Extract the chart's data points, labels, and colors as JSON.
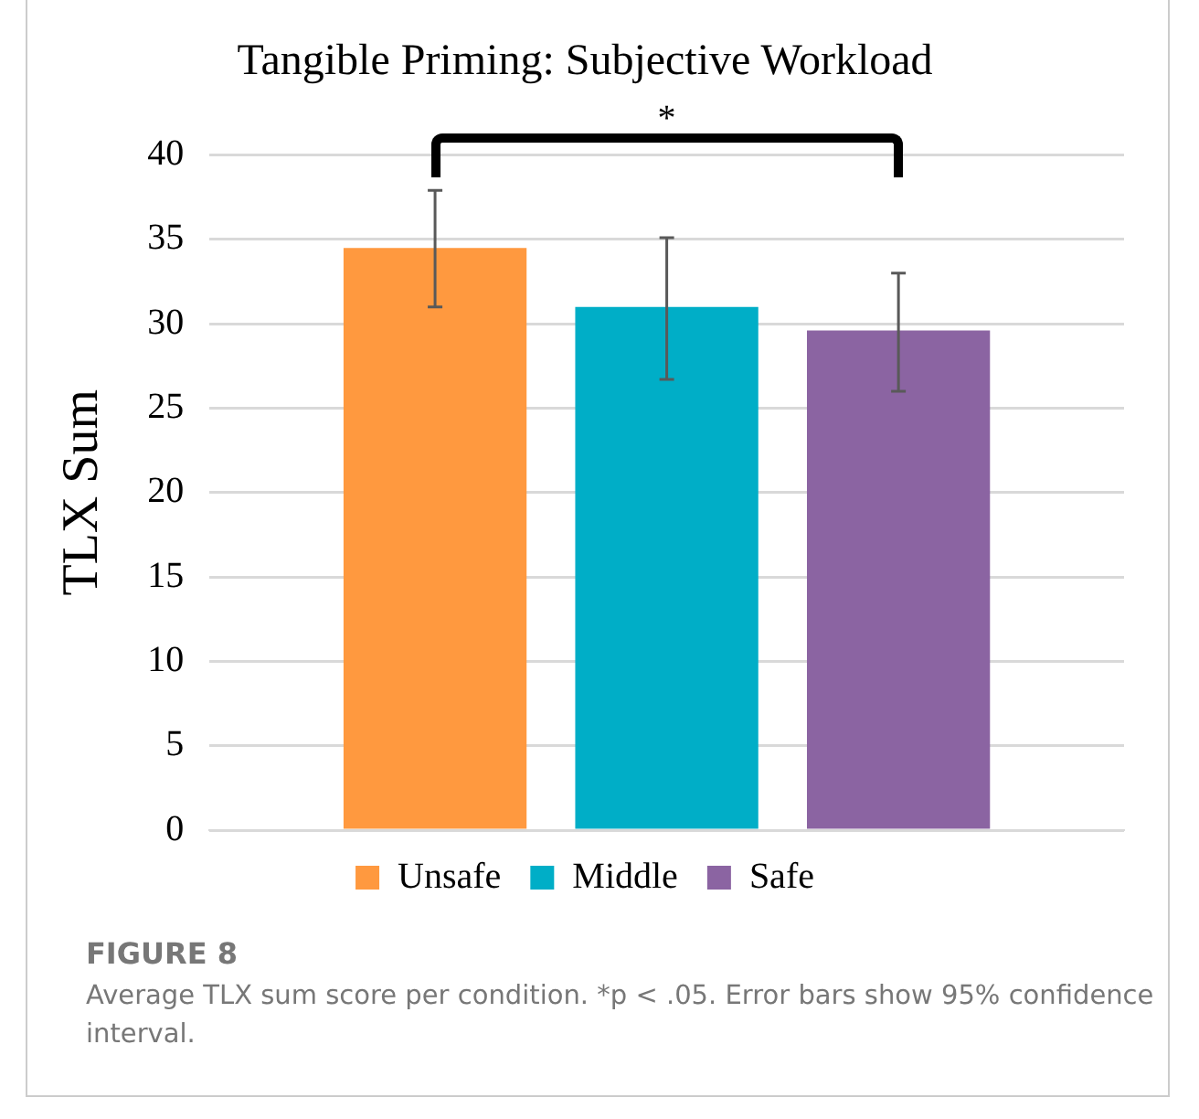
{
  "chart_data": {
    "type": "bar",
    "title": "Tangible Priming: Subjective Workload",
    "ylabel": "TLX Sum",
    "categories": [
      null
    ],
    "series": [
      {
        "name": "Unsafe",
        "color": "#ff993f",
        "values": [
          34.5
        ],
        "errors": [
          [
            31.0,
            37.9
          ]
        ]
      },
      {
        "name": "Middle",
        "color": "#00aec7",
        "values": [
          31.0
        ],
        "errors": [
          [
            26.7,
            35.1
          ]
        ]
      },
      {
        "name": "Safe",
        "color": "#8b64a2",
        "values": [
          29.6
        ],
        "errors": [
          [
            26.0,
            33.0
          ]
        ]
      }
    ],
    "ylim": [
      0,
      40
    ],
    "yticks": [
      0,
      5,
      10,
      15,
      20,
      25,
      30,
      35,
      40
    ],
    "grid": "y",
    "legend": "bottom",
    "tick_labels": "y",
    "annotations": [
      "*",
      "FIGURE 8",
      "Average TLX sum score per condition. *p < .05. Error bars show 95% confidence interval."
    ]
  }
}
